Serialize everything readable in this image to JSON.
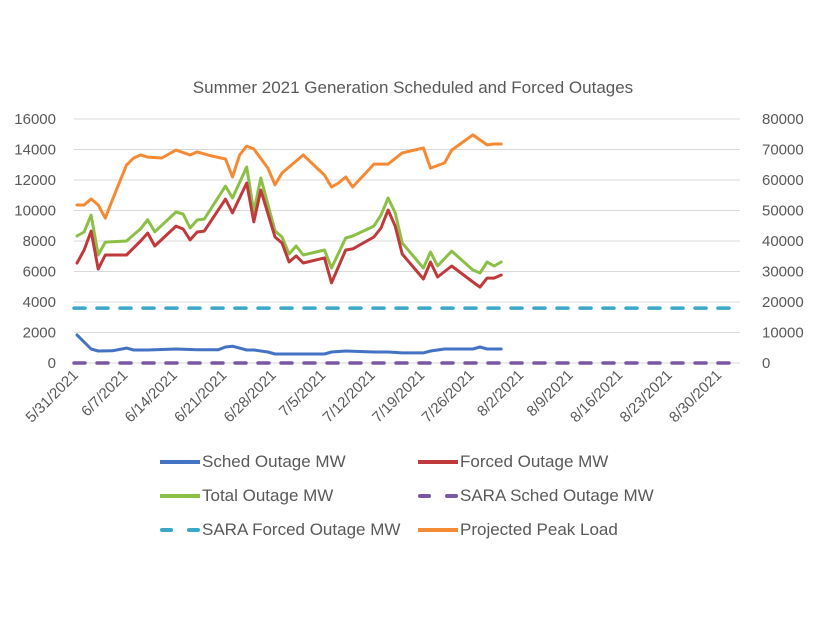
{
  "chart_data": {
    "type": "line",
    "title": "Summer 2021 Generation Scheduled and Forced Outages",
    "xlabel": "",
    "ylabel": "",
    "y2label": "",
    "x_start_date": "5/31/2021",
    "x_tick_labels": [
      "5/31/2021",
      "6/7/2021",
      "6/14/2021",
      "6/21/2021",
      "6/28/2021",
      "7/5/2021",
      "7/12/2021",
      "7/19/2021",
      "7/26/2021",
      "8/2/2021",
      "8/9/2021",
      "8/16/2021",
      "8/23/2021",
      "8/30/2021"
    ],
    "x_day_range": [
      0,
      94
    ],
    "ylim": [
      0,
      16000
    ],
    "y_ticks": [
      0,
      2000,
      4000,
      6000,
      8000,
      10000,
      12000,
      14000,
      16000
    ],
    "y_tick_labels": [
      "0",
      "2000",
      "4000",
      "6000",
      "8000",
      "10000",
      "12000",
      "14000",
      "16000"
    ],
    "y2lim": [
      0,
      80000
    ],
    "y2_ticks": [
      0,
      10000,
      20000,
      30000,
      40000,
      50000,
      60000,
      70000,
      80000
    ],
    "y2_tick_labels": [
      "0",
      "10000",
      "20000",
      "30000",
      "40000",
      "50000",
      "60000",
      "70000",
      "80000"
    ],
    "grid": true,
    "legend_position": "bottom",
    "series": [
      {
        "name": "Sched Outage MW",
        "axis": "left",
        "color": "#4472c4",
        "dash": false,
        "x_days": [
          0,
          2,
          3,
          5,
          7,
          8,
          10,
          14,
          17,
          20,
          21,
          22,
          24,
          25,
          27,
          28,
          35,
          36,
          38,
          42,
          44,
          46,
          49,
          50,
          52,
          56,
          57,
          58,
          60
        ],
        "values": [
          1840,
          920,
          790,
          800,
          980,
          850,
          850,
          920,
          870,
          870,
          1050,
          1100,
          850,
          850,
          720,
          590,
          590,
          720,
          790,
          720,
          720,
          660,
          660,
          790,
          920,
          920,
          1050,
          920,
          920
        ]
      },
      {
        "name": "Forced Outage MW",
        "axis": "left",
        "color": "#c0393b",
        "dash": false,
        "x_days": [
          0,
          1,
          2,
          3,
          4,
          7,
          9,
          10,
          11,
          14,
          15,
          16,
          17,
          18,
          21,
          22,
          24,
          25,
          26,
          28,
          29,
          30,
          31,
          32,
          35,
          36,
          38,
          39,
          42,
          43,
          44,
          45,
          46,
          49,
          50,
          51,
          53,
          56,
          57,
          58,
          59,
          60
        ],
        "values": [
          6560,
          7400,
          8650,
          6160,
          7080,
          7080,
          8000,
          8520,
          7670,
          8980,
          8790,
          8070,
          8590,
          8650,
          10750,
          9840,
          11800,
          9250,
          11340,
          8260,
          7870,
          6620,
          7020,
          6560,
          6890,
          5250,
          7410,
          7480,
          8260,
          8850,
          10030,
          8980,
          7150,
          5510,
          6620,
          5640,
          6360,
          5310,
          4980,
          5570,
          5570,
          5770
        ]
      },
      {
        "name": "Total Outage MW",
        "axis": "left",
        "color": "#8cbf45",
        "dash": false,
        "x_days": [
          0,
          1,
          2,
          3,
          4,
          7,
          9,
          10,
          11,
          14,
          15,
          16,
          17,
          18,
          21,
          22,
          24,
          25,
          26,
          28,
          29,
          30,
          31,
          32,
          35,
          36,
          38,
          39,
          42,
          43,
          44,
          45,
          46,
          49,
          50,
          51,
          53,
          56,
          57,
          58,
          59,
          60
        ],
        "values": [
          8330,
          8590,
          9700,
          7080,
          7930,
          8000,
          8800,
          9400,
          8600,
          9900,
          9770,
          8850,
          9380,
          9440,
          11600,
          10820,
          12850,
          9900,
          12130,
          8660,
          8260,
          7150,
          7670,
          7080,
          7410,
          6230,
          8200,
          8330,
          8980,
          9700,
          10820,
          9840,
          7870,
          6230,
          7280,
          6360,
          7340,
          6100,
          5900,
          6620,
          6360,
          6620
        ]
      },
      {
        "name": "SARA Sched Outage MW",
        "axis": "left",
        "color": "#7a57a3",
        "dash": true,
        "x_days": [
          0,
          94
        ],
        "values": [
          0,
          0
        ]
      },
      {
        "name": "SARA Forced Outage MW",
        "axis": "left",
        "color": "#3ba8c9",
        "dash": true,
        "x_days": [
          0,
          94
        ],
        "values": [
          3600,
          3600
        ]
      },
      {
        "name": "Projected Peak Load",
        "axis": "right",
        "color": "#f58a34",
        "dash": false,
        "x_days": [
          0,
          1,
          2,
          3,
          4,
          5,
          7,
          8,
          9,
          10,
          12,
          14,
          16,
          17,
          19,
          21,
          22,
          23,
          24,
          25,
          27,
          28,
          29,
          32,
          35,
          36,
          37,
          38,
          39,
          42,
          44,
          46,
          49,
          50,
          52,
          53,
          56,
          58,
          59,
          60
        ],
        "values": [
          51800,
          51800,
          53800,
          51800,
          47500,
          53400,
          64900,
          67200,
          68200,
          67500,
          67200,
          69800,
          68200,
          69200,
          67900,
          66900,
          61000,
          68200,
          71100,
          70200,
          63900,
          58400,
          62300,
          68200,
          61600,
          57700,
          59000,
          61000,
          57700,
          65200,
          65200,
          68900,
          70500,
          63900,
          65600,
          69800,
          74800,
          71500,
          71800,
          71800
        ]
      }
    ]
  }
}
